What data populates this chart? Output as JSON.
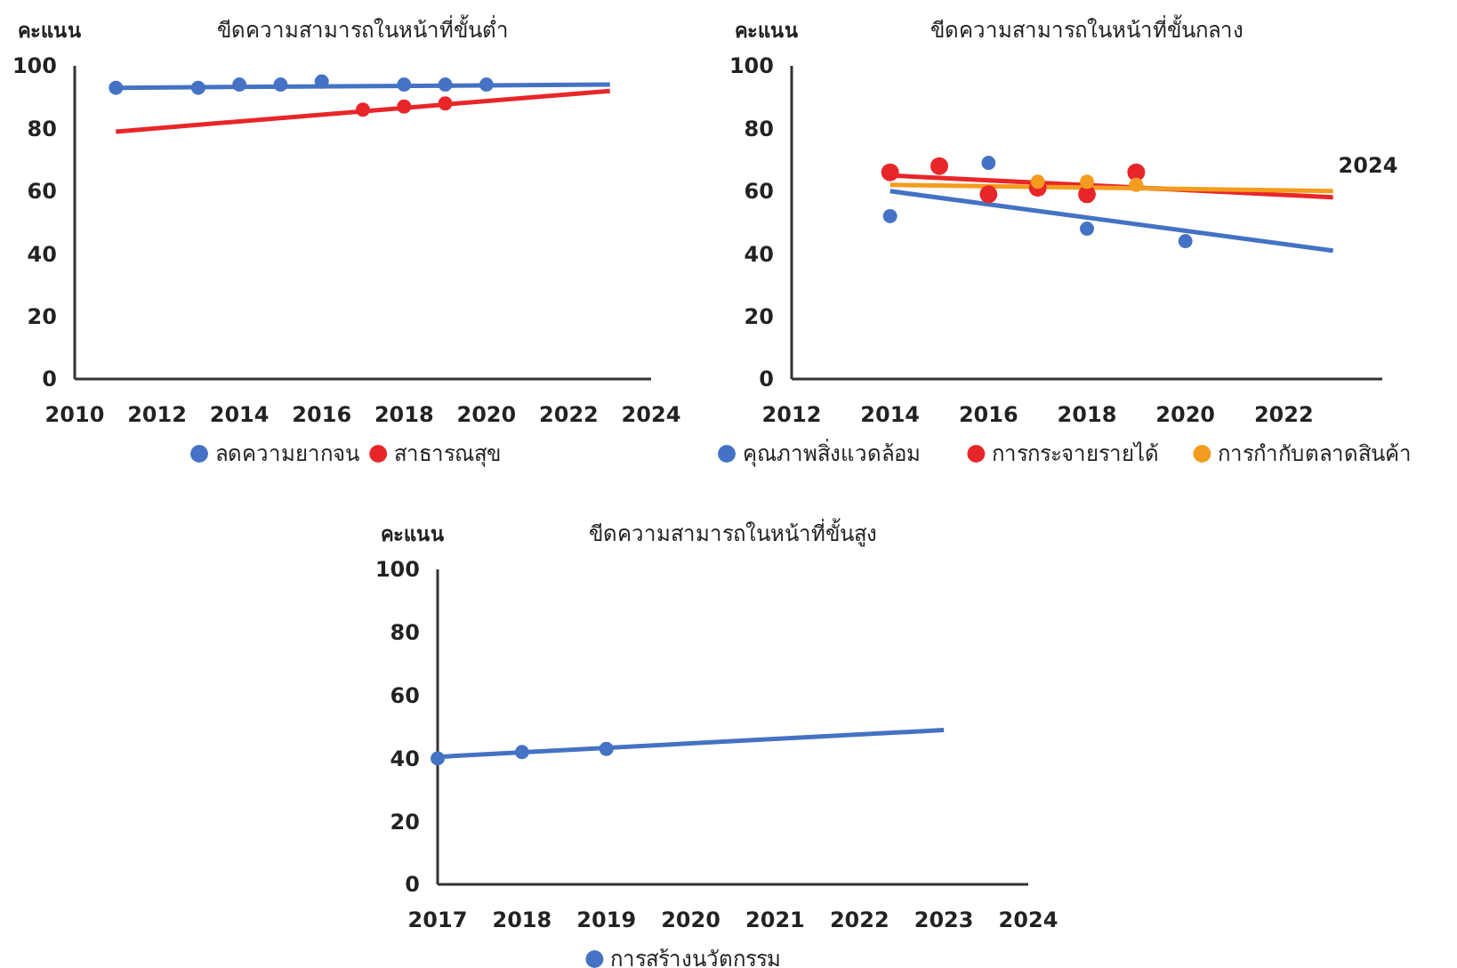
{
  "chart_data": [
    {
      "type": "scatter",
      "title": "ขีดความสามารถในหน้าที่ขั้นต่ำ",
      "ylabel": "คะแนน",
      "xlim": [
        2010,
        2024
      ],
      "xticks": [
        2010,
        2012,
        2014,
        2016,
        2018,
        2020,
        2022,
        2024
      ],
      "ylim": [
        0,
        100
      ],
      "yticks": [
        0,
        20,
        40,
        60,
        80,
        100
      ],
      "grid": false,
      "legend": "bottom",
      "marker": "circle",
      "series": [
        {
          "type": "line",
          "marker": "none",
          "color": "#4472c4",
          "x": [
            2011,
            2023
          ],
          "values": [
            93,
            94
          ]
        },
        {
          "type": "line",
          "marker": "none",
          "color": "#e8262a",
          "x": [
            2011,
            2023
          ],
          "values": [
            79,
            92
          ]
        },
        {
          "name": "ลดความยากจน",
          "color": "#4472c4",
          "x": [
            2011,
            2013,
            2014,
            2015,
            2016,
            2018,
            2019,
            2020
          ],
          "values": [
            93,
            93,
            94,
            94,
            95,
            94,
            94,
            94
          ]
        },
        {
          "name": "สาธารณสุข",
          "color": "#e8262a",
          "x": [
            2017,
            2018,
            2019
          ],
          "values": [
            86,
            87,
            88
          ]
        }
      ]
    },
    {
      "type": "scatter",
      "title": "ขีดความสามารถในหน้าที่ขั้นกลาง",
      "ylabel": "คะแนน",
      "xlim": [
        2012,
        2024
      ],
      "xticks": [
        2012,
        2014,
        2016,
        2018,
        2020,
        2022
      ],
      "ylim": [
        0,
        100
      ],
      "yticks": [
        0,
        20,
        40,
        60,
        80,
        100
      ],
      "grid": false,
      "legend": "bottom",
      "marker": "circle",
      "annotations": [
        "2024"
      ],
      "series": [
        {
          "type": "line",
          "marker": "none",
          "color": "#4472c4",
          "x": [
            2014,
            2023
          ],
          "values": [
            60,
            41
          ]
        },
        {
          "type": "line",
          "marker": "none",
          "color": "#e8262a",
          "x": [
            2014,
            2023
          ],
          "values": [
            65,
            58
          ]
        },
        {
          "type": "line",
          "marker": "none",
          "color": "#f39c1f",
          "x": [
            2014,
            2023
          ],
          "values": [
            62,
            60
          ]
        },
        {
          "name": "คุณภาพสิ่งแวดล้อม",
          "color": "#4472c4",
          "x": [
            2014,
            2016,
            2018,
            2020
          ],
          "values": [
            52,
            69,
            48,
            44
          ]
        },
        {
          "name": "การกระจายรายได้",
          "color": "#e8262a",
          "x": [
            2014,
            2015,
            2016,
            2017,
            2018,
            2019
          ],
          "values": [
            66,
            68,
            59,
            61,
            59,
            66
          ]
        },
        {
          "name": "การกำกับตลาดสินค้า",
          "color": "#f39c1f",
          "x": [
            2017,
            2018,
            2019
          ],
          "values": [
            63,
            63,
            62
          ]
        }
      ]
    },
    {
      "type": "scatter",
      "title": "ขีดความสามารถในหน้าที่ขั้นสูง",
      "ylabel": "คะแนน",
      "xlim": [
        2017,
        2024
      ],
      "xticks": [
        2017,
        2018,
        2019,
        2020,
        2021,
        2022,
        2023,
        2024
      ],
      "ylim": [
        0,
        100
      ],
      "yticks": [
        0,
        20,
        40,
        60,
        80,
        100
      ],
      "grid": false,
      "legend": "bottom",
      "marker": "circle",
      "series": [
        {
          "type": "line",
          "marker": "none",
          "color": "#4472c4",
          "x": [
            2017,
            2023
          ],
          "values": [
            40.5,
            49
          ]
        },
        {
          "name": "การสร้างนวัตกรรม",
          "color": "#4472c4",
          "x": [
            2017,
            2018,
            2019
          ],
          "values": [
            40,
            42,
            43
          ]
        }
      ]
    }
  ]
}
